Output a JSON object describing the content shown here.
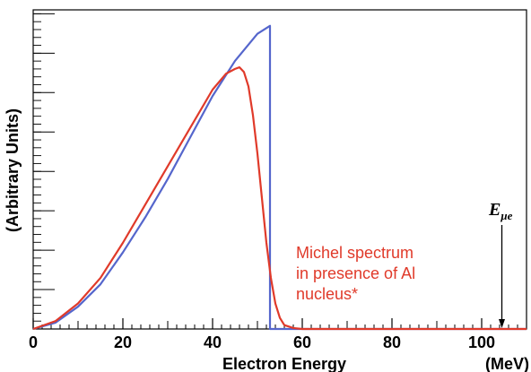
{
  "chart_data": {
    "type": "line",
    "title": "",
    "xlabel": "Electron Energy",
    "xunit": "(MeV)",
    "ylabel": "(Arbitrary Units)",
    "xlim": [
      0,
      110
    ],
    "ylim": [
      0,
      1.0
    ],
    "x_ticks": [
      "0",
      "20",
      "40",
      "60",
      "80",
      "100"
    ],
    "y_ticks_count": 8,
    "series": [
      {
        "color": "#5566cc",
        "points": [
          [
            0,
            0
          ],
          [
            5,
            0.02
          ],
          [
            10,
            0.07
          ],
          [
            15,
            0.14
          ],
          [
            20,
            0.24
          ],
          [
            25,
            0.35
          ],
          [
            30,
            0.47
          ],
          [
            35,
            0.6
          ],
          [
            40,
            0.73
          ],
          [
            45,
            0.84
          ],
          [
            50,
            0.925
          ],
          [
            52.8,
            0.95
          ],
          [
            52.8,
            0.0
          ],
          [
            110,
            0.0
          ]
        ]
      },
      {
        "color": "#e03a2a",
        "points": [
          [
            0,
            0
          ],
          [
            5,
            0.025
          ],
          [
            10,
            0.08
          ],
          [
            15,
            0.16
          ],
          [
            20,
            0.27
          ],
          [
            25,
            0.39
          ],
          [
            30,
            0.51
          ],
          [
            35,
            0.63
          ],
          [
            40,
            0.75
          ],
          [
            43,
            0.8
          ],
          [
            45,
            0.815
          ],
          [
            46,
            0.82
          ],
          [
            47,
            0.805
          ],
          [
            48,
            0.76
          ],
          [
            49,
            0.67
          ],
          [
            50,
            0.55
          ],
          [
            51,
            0.41
          ],
          [
            52,
            0.27
          ],
          [
            53,
            0.16
          ],
          [
            54,
            0.08
          ],
          [
            55,
            0.035
          ],
          [
            56,
            0.012
          ],
          [
            58,
            0.003
          ],
          [
            60,
            0.0
          ],
          [
            110,
            0.0
          ]
        ]
      }
    ],
    "annotations": {
      "michel_line1": "Michel spectrum",
      "michel_line2": "in presence of Al",
      "michel_line3": "nucleus*",
      "emue_symbol": "E",
      "emue_sub": "μe",
      "emue_x": 104.5
    },
    "colors": {
      "axis": "#000000",
      "annotation": "#e03a2a"
    }
  }
}
